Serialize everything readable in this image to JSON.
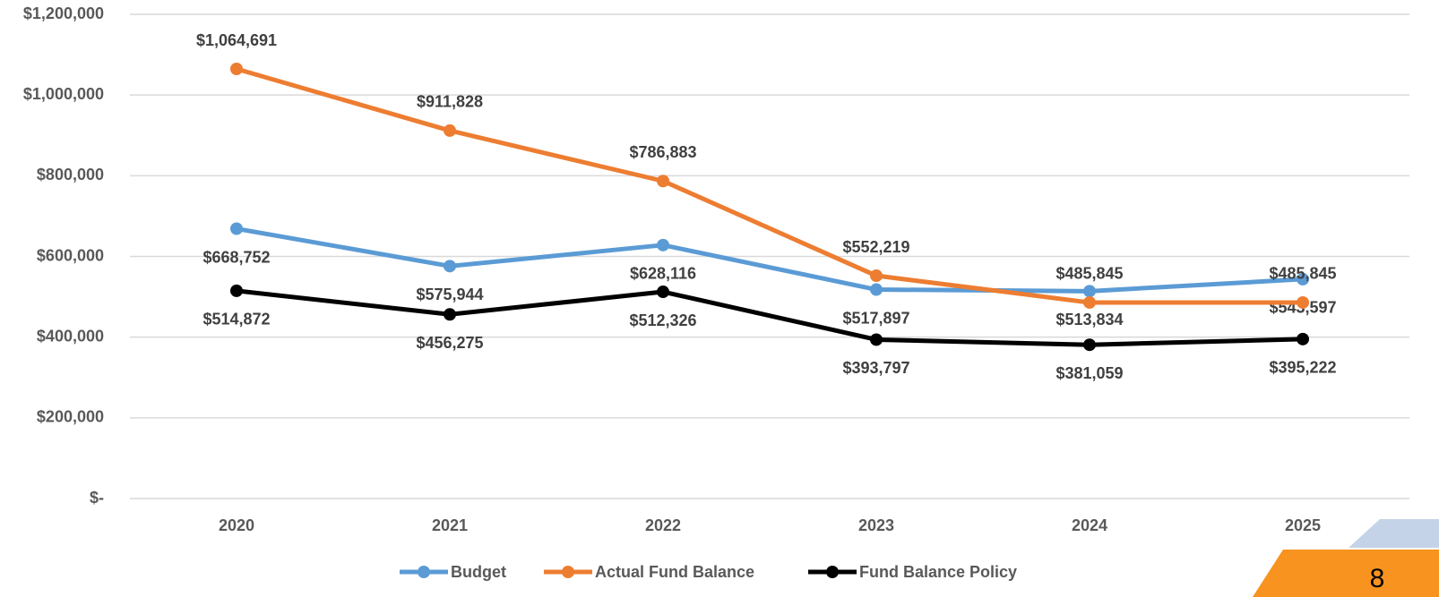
{
  "page_number": "8",
  "chart_data": {
    "type": "line",
    "categories": [
      "2020",
      "2021",
      "2022",
      "2023",
      "2024",
      "2025"
    ],
    "series": [
      {
        "name": "Budget",
        "color": "#5b9bd5",
        "values": [
          668752,
          575944,
          628116,
          517897,
          513834,
          543597
        ],
        "value_labels": [
          "$668,752",
          "$575,944",
          "$628,116",
          "$517,897",
          "$513,834",
          "$543,597"
        ]
      },
      {
        "name": "Actual Fund Balance",
        "color": "#ed7d31",
        "values": [
          1064691,
          911828,
          786883,
          552219,
          485845,
          485845
        ],
        "value_labels": [
          "$1,064,691",
          "$911,828",
          "$786,883",
          "$552,219",
          "$485,845",
          "$485,845"
        ]
      },
      {
        "name": "Fund Balance Policy",
        "color": "#000000",
        "values": [
          514872,
          456275,
          512326,
          393797,
          381059,
          395222
        ],
        "value_labels": [
          "$514,872",
          "$456,275",
          "$512,326",
          "$393,797",
          "$381,059",
          "$395,222"
        ]
      }
    ],
    "ylim": [
      0,
      1200000
    ],
    "yticks": [
      {
        "value": 0,
        "label": "$-"
      },
      {
        "value": 200000,
        "label": "$200,000"
      },
      {
        "value": 400000,
        "label": "$400,000"
      },
      {
        "value": 600000,
        "label": "$600,000"
      },
      {
        "value": 800000,
        "label": "$800,000"
      },
      {
        "value": 1000000,
        "label": "$1,000,000"
      },
      {
        "value": 1200000,
        "label": "$1,200,000"
      }
    ],
    "grid": true,
    "legend": "bottom"
  }
}
